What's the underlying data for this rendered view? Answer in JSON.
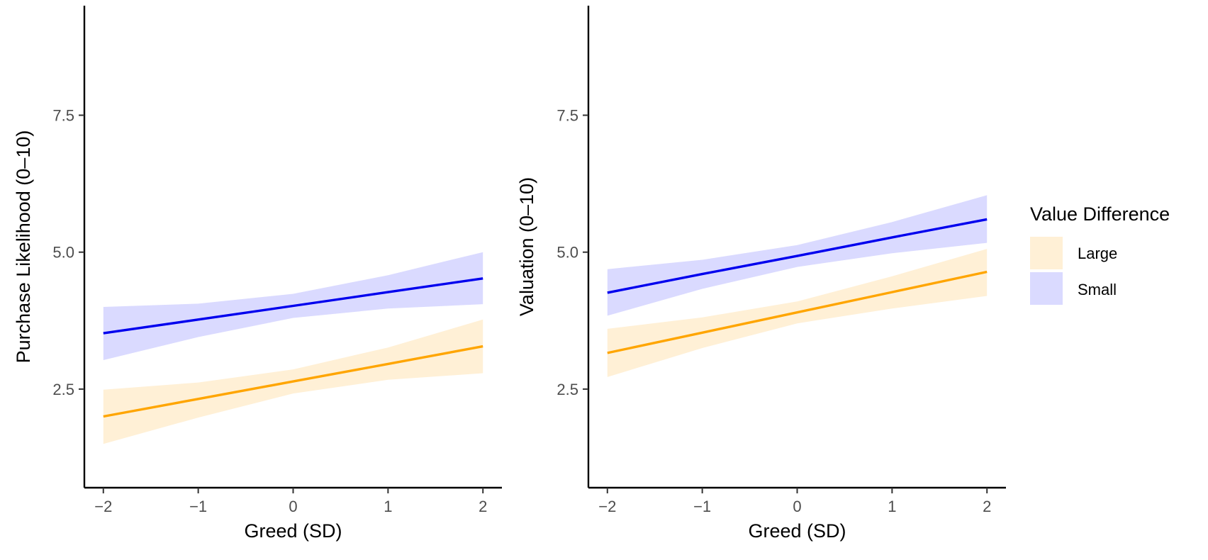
{
  "chart_data": [
    {
      "type": "line",
      "xlabel": "Greed (SD)",
      "ylabel": "Purchase Likelihood (0–10)",
      "xlim": [
        -2.2,
        2.2
      ],
      "ylim": [
        0.7,
        9.5
      ],
      "x_ticks": [
        -2,
        -1,
        0,
        1,
        2
      ],
      "x_tick_labels": [
        "−2",
        "−1",
        "0",
        "1",
        "2"
      ],
      "y_ticks": [
        2.5,
        5.0,
        7.5
      ],
      "y_tick_labels": [
        "2.5",
        "5.0",
        "7.5"
      ],
      "grid": false,
      "series": [
        {
          "name": "Large",
          "color": "#FFA500",
          "band_color": "#FFF0D6",
          "x": [
            -2,
            -1,
            0,
            1,
            2
          ],
          "y": [
            2.0,
            2.32,
            2.64,
            2.96,
            3.28
          ],
          "lower": [
            1.5,
            1.98,
            2.42,
            2.67,
            2.79
          ],
          "upper": [
            2.49,
            2.62,
            2.86,
            3.26,
            3.77
          ]
        },
        {
          "name": "Small",
          "color": "#0000EE",
          "band_color": "#DADAFF",
          "x": [
            -2,
            -1,
            0,
            1,
            2
          ],
          "y": [
            3.52,
            3.77,
            4.02,
            4.27,
            4.52
          ],
          "lower": [
            3.03,
            3.45,
            3.8,
            3.97,
            4.05
          ],
          "upper": [
            4.0,
            4.06,
            4.24,
            4.58,
            5.0
          ]
        }
      ]
    },
    {
      "type": "line",
      "xlabel": "Greed (SD)",
      "ylabel": "Valuation (0–10)",
      "xlim": [
        -2.2,
        2.2
      ],
      "ylim": [
        0.7,
        9.5
      ],
      "x_ticks": [
        -2,
        -1,
        0,
        1,
        2
      ],
      "x_tick_labels": [
        "−2",
        "−1",
        "0",
        "1",
        "2"
      ],
      "y_ticks": [
        2.5,
        5.0,
        7.5
      ],
      "y_tick_labels": [
        "2.5",
        "5.0",
        "7.5"
      ],
      "grid": false,
      "series": [
        {
          "name": "Large",
          "color": "#FFA500",
          "band_color": "#FFF0D6",
          "x": [
            -2,
            -1,
            0,
            1,
            2
          ],
          "y": [
            3.16,
            3.53,
            3.9,
            4.27,
            4.64
          ],
          "lower": [
            2.72,
            3.25,
            3.7,
            3.97,
            4.2
          ],
          "upper": [
            3.6,
            3.81,
            4.1,
            4.56,
            5.06
          ]
        },
        {
          "name": "Small",
          "color": "#0000EE",
          "band_color": "#DADAFF",
          "x": [
            -2,
            -1,
            0,
            1,
            2
          ],
          "y": [
            4.26,
            4.6,
            4.93,
            5.27,
            5.6
          ],
          "lower": [
            3.84,
            4.33,
            4.73,
            4.98,
            5.17
          ],
          "upper": [
            4.69,
            4.86,
            5.13,
            5.55,
            6.04
          ]
        }
      ]
    }
  ],
  "legend": {
    "title": "Value Difference",
    "placement": "right",
    "items": [
      {
        "label": "Large",
        "color": "#FFF0D6",
        "line_color": "#FFA500"
      },
      {
        "label": "Small",
        "color": "#DADAFF",
        "line_color": "#0000EE"
      }
    ]
  }
}
